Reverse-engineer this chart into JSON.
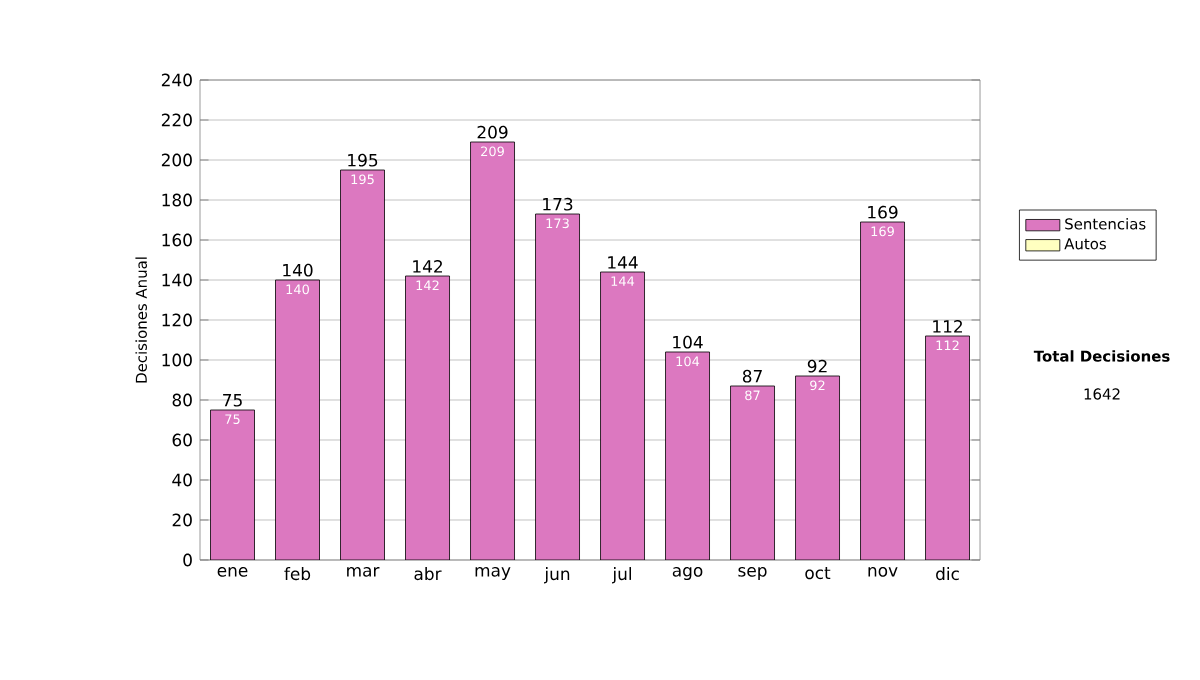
{
  "chart_data": {
    "type": "bar",
    "stacked": true,
    "ylabel": "Decisiones Anual",
    "categories": [
      "ene",
      "feb",
      "mar",
      "abr",
      "may",
      "jun",
      "jul",
      "ago",
      "sep",
      "oct",
      "nov",
      "dic"
    ],
    "series": [
      {
        "name": "Sentencias",
        "color": "#dc78c0",
        "values": [
          75,
          140,
          195,
          142,
          209,
          173,
          144,
          104,
          87,
          92,
          169,
          112
        ],
        "value_labels": [
          "75",
          "140",
          "195",
          "142",
          "209",
          "173",
          "144",
          "104",
          "87",
          "92",
          "169",
          "112"
        ]
      },
      {
        "name": "Autos",
        "color": "#ffffc0",
        "values": [
          0,
          0,
          0,
          0,
          0,
          0,
          0,
          0,
          0,
          0,
          0,
          0
        ]
      }
    ],
    "totals": [
      "75",
      "140",
      "195",
      "142",
      "209",
      "173",
      "144",
      "104",
      "87",
      "92",
      "169",
      "112"
    ],
    "ylim": [
      0,
      240
    ],
    "yticks": [
      0,
      20,
      40,
      60,
      80,
      100,
      120,
      140,
      160,
      180,
      200,
      220,
      240
    ],
    "grid": "y",
    "legend": "right",
    "annotations": [
      "Total Decisiones",
      "1642"
    ]
  }
}
